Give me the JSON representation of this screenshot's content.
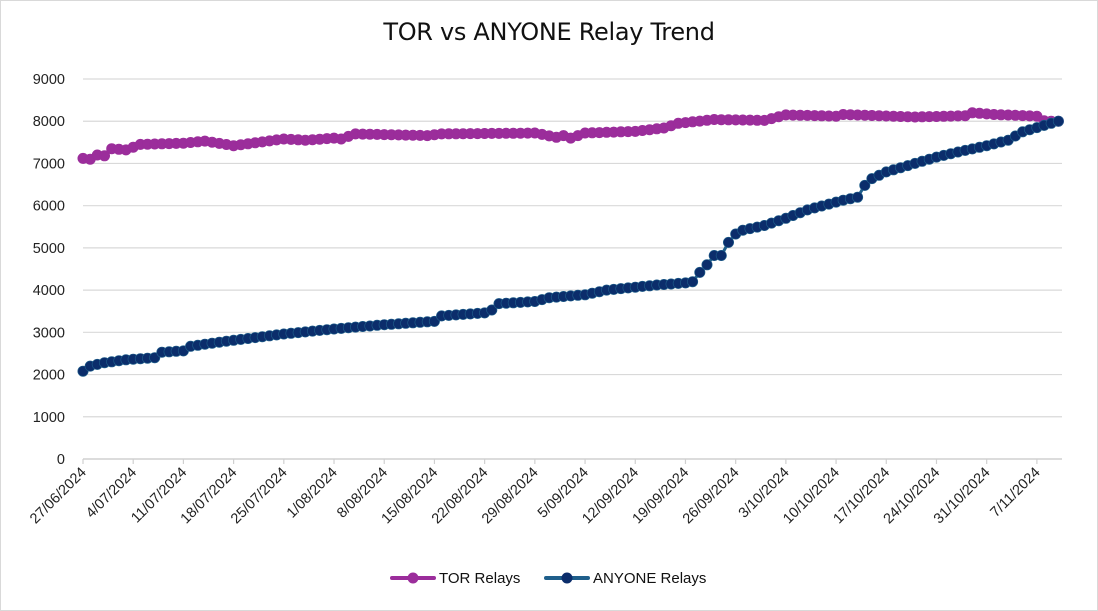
{
  "chart_data": {
    "type": "line",
    "title": "TOR vs ANYONE Relay Trend",
    "xlabel": "",
    "ylabel": "",
    "ylim": [
      0,
      9000
    ],
    "y_ticks": [
      "0",
      "1000",
      "2000",
      "3000",
      "4000",
      "5000",
      "6000",
      "7000",
      "8000",
      "9000"
    ],
    "x_tick_labels": [
      "27/06/2024",
      "4/07/2024",
      "11/07/2024",
      "18/07/2024",
      "25/07/2024",
      "1/08/2024",
      "8/08/2024",
      "15/08/2024",
      "22/08/2024",
      "29/08/2024",
      "5/09/2024",
      "12/09/2024",
      "19/09/2024",
      "26/09/2024",
      "3/10/2024",
      "10/10/2024",
      "17/10/2024",
      "24/10/2024",
      "31/10/2024",
      "7/11/2024"
    ],
    "x_start": "27/06/2024",
    "x_interval_days": 1,
    "x_day_range": [
      0,
      136
    ],
    "grid": true,
    "legend_position": "bottom",
    "series": [
      {
        "name": "TOR Relays",
        "color": "#9b2d9b",
        "anchors_day": [
          0,
          1,
          2,
          3,
          4,
          6,
          8,
          14,
          17,
          21,
          28,
          31,
          35,
          36,
          38,
          48,
          50,
          63,
          66,
          67,
          68,
          70,
          77,
          81,
          83,
          88,
          95,
          98,
          105,
          106,
          116,
          123,
          124,
          127,
          133,
          134,
          135,
          136
        ],
        "anchors_value": [
          7120,
          7100,
          7200,
          7180,
          7350,
          7320,
          7450,
          7480,
          7530,
          7420,
          7580,
          7550,
          7600,
          7580,
          7700,
          7660,
          7700,
          7720,
          7620,
          7660,
          7600,
          7720,
          7760,
          7840,
          7950,
          8040,
          8020,
          8150,
          8120,
          8160,
          8100,
          8130,
          8200,
          8160,
          8120,
          8010,
          8000,
          8000
        ]
      },
      {
        "name": "ANYONE Relays",
        "color": "#0b2d6b",
        "line_color": "#1f5f8b",
        "anchors_day": [
          0,
          1,
          3,
          6,
          10,
          11,
          14,
          15,
          20,
          28,
          35,
          42,
          49,
          50,
          56,
          57,
          58,
          63,
          65,
          70,
          73,
          77,
          80,
          84,
          85,
          86,
          87,
          88,
          89,
          90,
          91,
          92,
          95,
          98,
          101,
          106,
          108,
          109,
          110,
          112,
          119,
          122,
          126,
          129,
          131,
          136
        ],
        "anchors_value": [
          2080,
          2200,
          2280,
          2350,
          2400,
          2530,
          2560,
          2670,
          2790,
          2960,
          3080,
          3180,
          3260,
          3390,
          3460,
          3530,
          3680,
          3730,
          3820,
          3890,
          4000,
          4070,
          4120,
          4170,
          4200,
          4420,
          4600,
          4820,
          4820,
          5130,
          5330,
          5420,
          5530,
          5700,
          5900,
          6130,
          6200,
          6480,
          6640,
          6800,
          7150,
          7270,
          7420,
          7550,
          7750,
          8000
        ]
      }
    ]
  }
}
